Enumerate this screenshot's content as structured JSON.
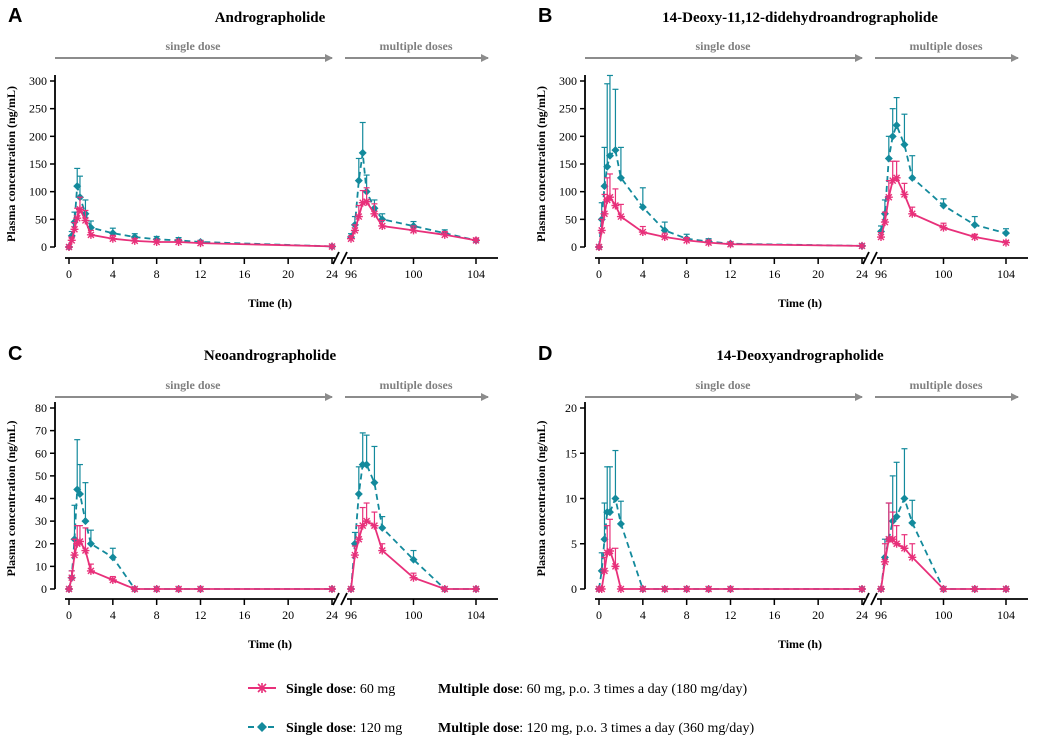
{
  "figure": {
    "legend": [
      {
        "name": "Single dose: 60 mg",
        "label_bold": "Single dose",
        "label_rest": ": 60 mg",
        "detail_bold": "Multiple dose",
        "detail_rest": ": 60 mg, p.o. 3 times a day (180 mg/day)",
        "color": "#E8307A",
        "marker": "asterisk",
        "dash": "solid"
      },
      {
        "name": "Single dose: 120 mg",
        "label_bold": "Single dose",
        "label_rest": ": 120 mg",
        "detail_bold": "Multiple dose",
        "detail_rest": ": 120 mg, p.o. 3 times a day (360 mg/day)",
        "color": "#138A9C",
        "marker": "diamond",
        "dash": "dashed"
      }
    ],
    "arrow_color": "#8C8C8C"
  },
  "chart_data": [
    {
      "type": "line",
      "panel": "A",
      "title": "Andrographolide",
      "xlabel": "Time (h)",
      "ylabel": "Plasma concentration (ng/mL)",
      "single_dose_label": "single dose",
      "multiple_dose_label": "multiple doses",
      "ylim": [
        0,
        300
      ],
      "yticks": [
        0,
        50,
        100,
        150,
        200,
        250,
        300
      ],
      "xlim_single": [
        0,
        24
      ],
      "xticks_single": [
        0,
        4,
        8,
        12,
        16,
        20,
        24
      ],
      "xlim_multiple": [
        96,
        104
      ],
      "xticks_multiple": [
        96,
        100,
        104
      ],
      "series": [
        {
          "name": "Single dose: 60 mg",
          "single": {
            "x": [
              0,
              0.25,
              0.5,
              0.75,
              1,
              1.5,
              2,
              4,
              6,
              8,
              10,
              12,
              24
            ],
            "y": [
              0,
              12,
              32,
              52,
              68,
              48,
              22,
              15,
              11,
              9,
              9,
              7,
              1
            ],
            "err": [
              0,
              6,
              12,
              18,
              22,
              18,
              8,
              6,
              4,
              3,
              3,
              3,
              0
            ]
          },
          "multiple": {
            "x": [
              96,
              96.25,
              96.5,
              96.75,
              97,
              97.5,
              98,
              100,
              102,
              104
            ],
            "y": [
              15,
              30,
              55,
              80,
              82,
              60,
              38,
              30,
              22,
              12
            ],
            "err": [
              5,
              10,
              20,
              22,
              25,
              18,
              10,
              8,
              6,
              4
            ]
          }
        },
        {
          "name": "Single dose: 120 mg",
          "single": {
            "x": [
              0,
              0.25,
              0.5,
              0.75,
              1,
              1.5,
              2,
              4,
              6,
              8,
              10,
              12,
              24
            ],
            "y": [
              0,
              20,
              45,
              110,
              90,
              60,
              35,
              25,
              18,
              14,
              12,
              9,
              1
            ],
            "err": [
              0,
              8,
              18,
              32,
              38,
              25,
              12,
              9,
              6,
              5,
              5,
              3,
              0
            ]
          },
          "multiple": {
            "x": [
              96,
              96.25,
              96.5,
              96.75,
              97,
              97.5,
              98,
              100,
              102,
              104
            ],
            "y": [
              18,
              40,
              120,
              170,
              100,
              70,
              50,
              38,
              25,
              12
            ],
            "err": [
              6,
              15,
              40,
              55,
              30,
              15,
              10,
              8,
              6,
              4
            ]
          }
        }
      ]
    },
    {
      "type": "line",
      "panel": "B",
      "title": "14-Deoxy-11,12-didehydroandrographolide",
      "xlabel": "Time (h)",
      "ylabel": "Plasma concentration (ng/mL)",
      "single_dose_label": "single dose",
      "multiple_dose_label": "multiple doses",
      "ylim": [
        0,
        300
      ],
      "yticks": [
        0,
        50,
        100,
        150,
        200,
        250,
        300
      ],
      "xlim_single": [
        0,
        24
      ],
      "xticks_single": [
        0,
        4,
        8,
        12,
        16,
        20,
        24
      ],
      "xlim_multiple": [
        96,
        104
      ],
      "xticks_multiple": [
        96,
        100,
        104
      ],
      "series": [
        {
          "name": "Single dose: 60 mg",
          "single": {
            "x": [
              0,
              0.25,
              0.5,
              0.75,
              1,
              1.5,
              2,
              4,
              6,
              8,
              10,
              12,
              24
            ],
            "y": [
              0,
              30,
              60,
              85,
              90,
              75,
              55,
              27,
              18,
              12,
              8,
              5,
              2
            ],
            "err": [
              0,
              20,
              35,
              40,
              42,
              30,
              22,
              10,
              7,
              5,
              4,
              3,
              0
            ]
          },
          "multiple": {
            "x": [
              96,
              96.25,
              96.5,
              96.75,
              97,
              97.5,
              98,
              100,
              102,
              104
            ],
            "y": [
              18,
              45,
              90,
              120,
              125,
              95,
              60,
              35,
              18,
              8
            ],
            "err": [
              8,
              18,
              30,
              35,
              30,
              20,
              12,
              8,
              5,
              3
            ]
          }
        },
        {
          "name": "Single dose: 120 mg",
          "single": {
            "x": [
              0,
              0.25,
              0.5,
              0.75,
              1,
              1.5,
              2,
              4,
              6,
              8,
              10,
              12,
              24
            ],
            "y": [
              0,
              50,
              110,
              145,
              165,
              175,
              125,
              72,
              30,
              15,
              10,
              6,
              2
            ],
            "err": [
              0,
              30,
              70,
              150,
              145,
              110,
              55,
              35,
              15,
              8,
              5,
              3,
              0
            ]
          },
          "multiple": {
            "x": [
              96,
              96.25,
              96.5,
              96.75,
              97,
              97.5,
              98,
              100,
              102,
              104
            ],
            "y": [
              28,
              60,
              160,
              200,
              220,
              185,
              125,
              75,
              40,
              25
            ],
            "err": [
              10,
              25,
              40,
              50,
              50,
              55,
              40,
              12,
              15,
              8
            ]
          }
        }
      ]
    },
    {
      "type": "line",
      "panel": "C",
      "title": "Neoandrographolide",
      "xlabel": "Time (h)",
      "ylabel": "Plasma concentration (ng/mL)",
      "single_dose_label": "single dose",
      "multiple_dose_label": "multiple doses",
      "ylim": [
        0,
        80
      ],
      "yticks": [
        0,
        10,
        20,
        30,
        40,
        50,
        60,
        70,
        80
      ],
      "xlim_single": [
        0,
        24
      ],
      "xticks_single": [
        0,
        4,
        8,
        12,
        16,
        20,
        24
      ],
      "xlim_multiple": [
        96,
        104
      ],
      "xticks_multiple": [
        96,
        100,
        104
      ],
      "series": [
        {
          "name": "Single dose: 60 mg",
          "single": {
            "x": [
              0,
              0.25,
              0.5,
              0.75,
              1,
              1.5,
              2,
              4,
              6,
              8,
              10,
              12,
              24
            ],
            "y": [
              0,
              5,
              15,
              20,
              21,
              17,
              8,
              4,
              0,
              0,
              0,
              0,
              0
            ],
            "err": [
              0,
              3,
              7,
              8,
              7,
              10,
              3,
              1.5,
              0,
              0,
              0,
              0,
              0
            ]
          },
          "multiple": {
            "x": [
              96,
              96.25,
              96.5,
              96.75,
              97,
              97.5,
              98,
              100,
              102,
              104
            ],
            "y": [
              0,
              15,
              22,
              28,
              30,
              28,
              17,
              5,
              0,
              0
            ],
            "err": [
              0,
              4,
              6,
              8,
              8,
              6,
              3,
              2,
              0,
              0
            ]
          }
        },
        {
          "name": "Single dose: 120 mg",
          "single": {
            "x": [
              0,
              0.25,
              0.5,
              0.75,
              1,
              1.5,
              2,
              4,
              6,
              8,
              10,
              12,
              24
            ],
            "y": [
              0,
              5,
              22,
              44,
              42,
              30,
              20,
              14,
              0,
              0,
              0,
              0,
              0
            ],
            "err": [
              0,
              3,
              15,
              22,
              13,
              17,
              6,
              4,
              0,
              0,
              0,
              0,
              0
            ]
          },
          "multiple": {
            "x": [
              96,
              96.25,
              96.5,
              96.75,
              97,
              97.5,
              98,
              100,
              102,
              104
            ],
            "y": [
              0,
              20,
              42,
              55,
              55,
              47,
              27,
              13,
              0,
              0
            ],
            "err": [
              0,
              5,
              12,
              14,
              13,
              16,
              5,
              4,
              0,
              0
            ]
          }
        }
      ]
    },
    {
      "type": "line",
      "panel": "D",
      "title": "14-Deoxyandrographolide",
      "xlabel": "Time (h)",
      "ylabel": "Plasma concentration (ng/mL)",
      "single_dose_label": "single dose",
      "multiple_dose_label": "multiple doses",
      "ylim": [
        0,
        20
      ],
      "yticks": [
        0,
        5,
        10,
        15,
        20
      ],
      "xlim_single": [
        0,
        24
      ],
      "xticks_single": [
        0,
        4,
        8,
        12,
        16,
        20,
        24
      ],
      "xlim_multiple": [
        96,
        104
      ],
      "xticks_multiple": [
        96,
        100,
        104
      ],
      "series": [
        {
          "name": "Single dose: 60 mg",
          "single": {
            "x": [
              0,
              0.25,
              0.5,
              0.75,
              1,
              1.5,
              2,
              4,
              6,
              8,
              10,
              12,
              24
            ],
            "y": [
              0,
              0,
              2,
              4,
              4.2,
              2.5,
              0,
              0,
              0,
              0,
              0,
              0,
              0
            ],
            "err": [
              0,
              0,
              1.5,
              3,
              3.5,
              2,
              0,
              0,
              0,
              0,
              0,
              0,
              0
            ]
          },
          "multiple": {
            "x": [
              96,
              96.25,
              96.5,
              96.75,
              97,
              97.5,
              98,
              100,
              102,
              104
            ],
            "y": [
              0,
              3,
              5.5,
              5.5,
              5,
              4.5,
              3.5,
              0,
              0,
              0
            ],
            "err": [
              0,
              2,
              4,
              3,
              2,
              1.5,
              1.5,
              0,
              0,
              0
            ]
          }
        },
        {
          "name": "Single dose: 120 mg",
          "single": {
            "x": [
              0,
              0.25,
              0.5,
              0.75,
              1,
              1.5,
              2,
              4,
              6,
              8,
              10,
              12,
              24
            ],
            "y": [
              0,
              2,
              5.5,
              8.5,
              8.5,
              10,
              7.2,
              0,
              0,
              0,
              0,
              0,
              0
            ],
            "err": [
              0,
              2,
              4,
              5,
              5,
              5.3,
              2.5,
              0,
              0,
              0,
              0,
              0,
              0
            ]
          },
          "multiple": {
            "x": [
              96,
              96.25,
              96.5,
              96.75,
              97,
              97.5,
              98,
              100,
              102,
              104
            ],
            "y": [
              0,
              3.5,
              5.5,
              7.5,
              8,
              10,
              7.3,
              0,
              0,
              0
            ],
            "err": [
              0,
              2,
              4,
              5,
              6,
              5.5,
              2.5,
              0,
              0,
              0
            ]
          }
        }
      ]
    }
  ]
}
